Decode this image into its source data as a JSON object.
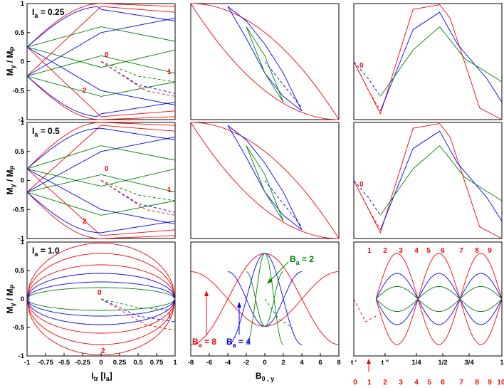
{
  "colors": {
    "red": "#ff0000",
    "green": "#008000",
    "blue": "#0000ff",
    "axis": "#000000"
  },
  "chart_data": {
    "type": "line",
    "layout": "3x3 grid",
    "ylabel": "M_y / M_P",
    "column_xlabels": [
      "I_tr [I_a]",
      "B_0,y",
      ""
    ],
    "rows": [
      {
        "label": "I_a = 0.25",
        "label_base": "I",
        "label_sub": "a",
        "label_value": "= 0.25"
      },
      {
        "label": "I_a = 0.5",
        "label_base": "I",
        "label_sub": "a",
        "label_value": "= 0.5"
      },
      {
        "label": "I_a = 1.0",
        "label_base": "I",
        "label_sub": "a",
        "label_value": "= 1.0"
      }
    ],
    "col1": {
      "xlim": [
        -1,
        1
      ],
      "ylim": [
        -1,
        1
      ],
      "xticks": [
        -1,
        -0.75,
        -0.5,
        -0.25,
        0,
        0.25,
        0.5,
        0.75,
        1
      ],
      "xticklabels": [
        "-1",
        "-0.75",
        "-0.5",
        "-0.25",
        "0",
        "0.25",
        "0.5",
        "0.75",
        "1"
      ],
      "yticks": [
        -1,
        -0.5,
        0,
        0.5,
        1
      ],
      "yticklabels": [
        "-1",
        "-0.5",
        "0",
        "0.5",
        "1"
      ],
      "annotations": [
        "0",
        "1",
        "2"
      ]
    },
    "col2": {
      "xlim": [
        -8,
        8
      ],
      "ylim": [
        -1,
        1
      ],
      "xticks": [
        -8,
        -6,
        -4,
        -2,
        0,
        2,
        4,
        6,
        8
      ],
      "xticklabels": [
        "-8",
        "-6",
        "-4",
        "-2",
        "0",
        "2",
        "4",
        "6",
        "8"
      ],
      "series": [
        {
          "name": "B_a = 8",
          "label_base": "B",
          "label_sub": "a",
          "label_value": "= 8",
          "color": "red",
          "amplitude": 8
        },
        {
          "name": "B_a = 4",
          "label_base": "B",
          "label_sub": "a",
          "label_value": "= 4",
          "color": "blue",
          "amplitude": 4
        },
        {
          "name": "B_a = 2",
          "label_base": "B",
          "label_sub": "a",
          "label_value": "= 2",
          "color": "green",
          "amplitude": 2
        }
      ]
    },
    "col3": {
      "xlim": [
        0,
        1
      ],
      "ylim": [
        -1,
        1
      ],
      "top_markers": [
        "1",
        "2",
        "3",
        "4",
        "5",
        "6",
        "7",
        "8",
        "9"
      ],
      "bottom_xticklabels": [
        "t '",
        "t ''",
        "1/4",
        "1/2",
        "3/4",
        "1"
      ],
      "bottom_markers": [
        "0",
        "1",
        "2",
        "3",
        "4",
        "5",
        "6",
        "7",
        "8",
        "9",
        "10"
      ]
    }
  }
}
